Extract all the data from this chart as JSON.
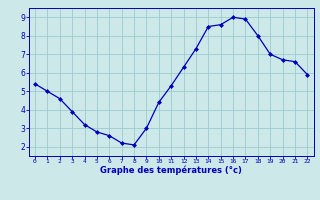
{
  "x": [
    0,
    1,
    2,
    3,
    4,
    5,
    6,
    7,
    8,
    9,
    10,
    11,
    12,
    13,
    14,
    15,
    16,
    17,
    18,
    19,
    20,
    21,
    22
  ],
  "y": [
    5.4,
    5.0,
    4.6,
    3.9,
    3.2,
    2.8,
    2.6,
    2.2,
    2.1,
    3.0,
    4.4,
    5.3,
    6.3,
    7.3,
    8.5,
    8.6,
    9.0,
    8.9,
    8.0,
    7.0,
    6.7,
    6.6,
    5.9
  ],
  "xlabel": "Graphe des températures (°c)",
  "ylim": [
    1.5,
    9.5
  ],
  "xlim": [
    -0.5,
    22.5
  ],
  "yticks": [
    2,
    3,
    4,
    5,
    6,
    7,
    8,
    9
  ],
  "xticks": [
    0,
    1,
    2,
    3,
    4,
    5,
    6,
    7,
    8,
    9,
    10,
    11,
    12,
    13,
    14,
    15,
    16,
    17,
    18,
    19,
    20,
    21,
    22
  ],
  "line_color": "#0000bb",
  "marker_color": "#0000bb",
  "bg_color": "#cce8e8",
  "grid_color": "#99cccc",
  "axis_color": "#0000bb",
  "tick_color": "#0000bb",
  "xlabel_color": "#0000bb"
}
